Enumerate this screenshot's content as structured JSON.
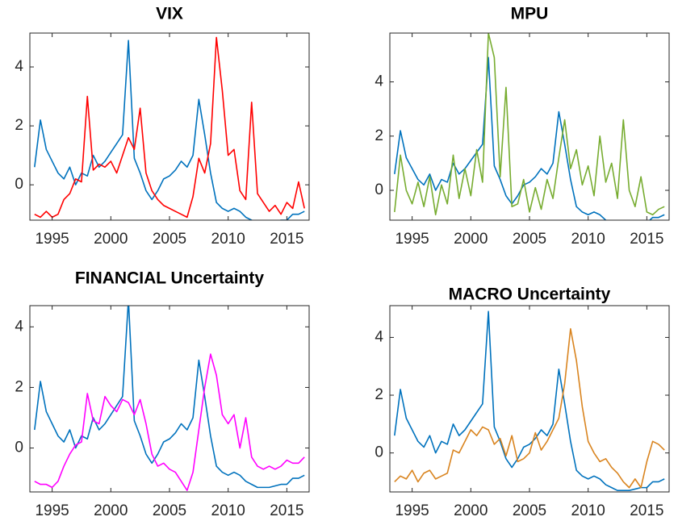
{
  "chart_data": [
    {
      "type": "line",
      "title": "VIX",
      "x": [
        1993.5,
        1994,
        1994.5,
        1995,
        1995.5,
        1996,
        1996.5,
        1997,
        1997.5,
        1998,
        1998.5,
        1999,
        1999.5,
        2000,
        2000.5,
        2001,
        2001.5,
        2002,
        2002.5,
        2003,
        2003.5,
        2004,
        2004.5,
        2005,
        2005.5,
        2006,
        2006.5,
        2007,
        2007.5,
        2008,
        2008.5,
        2009,
        2009.5,
        2010,
        2010.5,
        2011,
        2011.5,
        2012,
        2012.5,
        2013,
        2013.5,
        2014,
        2014.5,
        2015,
        2015.5,
        2016,
        2016.5
      ],
      "series": [
        {
          "color": "#0072bd",
          "values": [
            0.6,
            2.2,
            1.2,
            0.8,
            0.4,
            0.2,
            0.6,
            0.0,
            0.4,
            0.3,
            1.0,
            0.6,
            0.8,
            1.1,
            1.4,
            1.7,
            4.9,
            0.9,
            0.4,
            -0.2,
            -0.5,
            -0.2,
            0.2,
            0.3,
            0.5,
            0.8,
            0.6,
            1.0,
            2.9,
            1.7,
            0.4,
            -0.6,
            -0.8,
            -0.9,
            -0.8,
            -0.9,
            -1.1,
            -1.2,
            -1.3,
            -1.3,
            -1.3,
            -1.25,
            -1.2,
            -1.2,
            -1.0,
            -1.0,
            -0.9
          ]
        },
        {
          "color": "#ff0000",
          "values": [
            -1.0,
            -1.1,
            -0.9,
            -1.1,
            -1.0,
            -0.5,
            -0.3,
            0.2,
            0.1,
            3.0,
            0.5,
            0.7,
            0.6,
            0.8,
            0.4,
            1.0,
            1.6,
            1.2,
            2.6,
            0.4,
            -0.2,
            -0.5,
            -0.7,
            -0.8,
            -0.9,
            -1.0,
            -1.1,
            -0.4,
            0.9,
            0.4,
            1.4,
            5.0,
            3.2,
            1.0,
            1.2,
            -0.2,
            -0.5,
            2.8,
            -0.3,
            -0.6,
            -0.9,
            -0.7,
            -1.0,
            -0.6,
            -0.8,
            0.1,
            -0.8
          ]
        }
      ],
      "xlim": [
        1993.1,
        2016.9
      ],
      "xticks": [
        1995,
        2000,
        2005,
        2010,
        2015
      ],
      "ylim": [
        -1.2,
        5.15
      ],
      "yticks": [
        0,
        2,
        4
      ]
    },
    {
      "type": "line",
      "title": "MPU",
      "x": [
        1993.5,
        1994,
        1994.5,
        1995,
        1995.5,
        1996,
        1996.5,
        1997,
        1997.5,
        1998,
        1998.5,
        1999,
        1999.5,
        2000,
        2000.5,
        2001,
        2001.5,
        2002,
        2002.5,
        2003,
        2003.5,
        2004,
        2004.5,
        2005,
        2005.5,
        2006,
        2006.5,
        2007,
        2007.5,
        2008,
        2008.5,
        2009,
        2009.5,
        2010,
        2010.5,
        2011,
        2011.5,
        2012,
        2012.5,
        2013,
        2013.5,
        2014,
        2014.5,
        2015,
        2015.5,
        2016,
        2016.5
      ],
      "series": [
        {
          "color": "#0072bd",
          "values": [
            0.6,
            2.2,
            1.2,
            0.8,
            0.4,
            0.2,
            0.6,
            0.0,
            0.4,
            0.3,
            1.0,
            0.6,
            0.8,
            1.1,
            1.4,
            1.7,
            4.9,
            0.9,
            0.4,
            -0.2,
            -0.5,
            -0.2,
            0.2,
            0.3,
            0.5,
            0.8,
            0.6,
            1.0,
            2.9,
            1.7,
            0.4,
            -0.6,
            -0.8,
            -0.9,
            -0.8,
            -0.9,
            -1.1,
            -1.2,
            -1.3,
            -1.3,
            -1.3,
            -1.25,
            -1.2,
            -1.2,
            -1.0,
            -1.0,
            -0.9
          ]
        },
        {
          "color": "#77ac30",
          "values": [
            -0.8,
            1.3,
            0.0,
            -0.5,
            0.3,
            -0.6,
            0.5,
            -0.9,
            0.2,
            -0.5,
            1.3,
            -0.3,
            0.8,
            -0.2,
            1.5,
            0.3,
            5.8,
            4.9,
            0.5,
            3.8,
            -0.6,
            -0.5,
            0.4,
            -0.8,
            0.1,
            -0.7,
            0.4,
            -0.3,
            1.2,
            2.6,
            0.8,
            1.5,
            0.2,
            0.9,
            -0.2,
            2.0,
            0.3,
            1.0,
            -0.3,
            2.6,
            0.0,
            -0.6,
            0.5,
            -0.8,
            -0.9,
            -0.7,
            -0.6
          ]
        }
      ],
      "xlim": [
        1993.1,
        2016.9
      ],
      "xticks": [
        1995,
        2000,
        2005,
        2010,
        2015
      ],
      "ylim": [
        -1.1,
        5.8
      ],
      "yticks": [
        0,
        2,
        4
      ]
    },
    {
      "type": "line",
      "title": "FINANCIAL Uncertainty",
      "x": [
        1993.5,
        1994,
        1994.5,
        1995,
        1995.5,
        1996,
        1996.5,
        1997,
        1997.5,
        1998,
        1998.5,
        1999,
        1999.5,
        2000,
        2000.5,
        2001,
        2001.5,
        2002,
        2002.5,
        2003,
        2003.5,
        2004,
        2004.5,
        2005,
        2005.5,
        2006,
        2006.5,
        2007,
        2007.5,
        2008,
        2008.5,
        2009,
        2009.5,
        2010,
        2010.5,
        2011,
        2011.5,
        2012,
        2012.5,
        2013,
        2013.5,
        2014,
        2014.5,
        2015,
        2015.5,
        2016,
        2016.5
      ],
      "series": [
        {
          "color": "#0072bd",
          "values": [
            0.6,
            2.2,
            1.2,
            0.8,
            0.4,
            0.2,
            0.6,
            0.0,
            0.4,
            0.3,
            1.0,
            0.6,
            0.8,
            1.1,
            1.4,
            1.7,
            4.9,
            0.9,
            0.4,
            -0.2,
            -0.5,
            -0.2,
            0.2,
            0.3,
            0.5,
            0.8,
            0.6,
            1.0,
            2.9,
            1.7,
            0.4,
            -0.6,
            -0.8,
            -0.9,
            -0.8,
            -0.9,
            -1.1,
            -1.2,
            -1.3,
            -1.3,
            -1.3,
            -1.25,
            -1.2,
            -1.2,
            -1.0,
            -1.0,
            -0.9
          ]
        },
        {
          "color": "#ff00ff",
          "values": [
            -1.1,
            -1.2,
            -1.2,
            -1.3,
            -1.1,
            -0.6,
            -0.2,
            0.1,
            0.2,
            1.8,
            0.9,
            0.8,
            1.7,
            1.4,
            1.2,
            1.6,
            1.5,
            1.1,
            1.6,
            0.8,
            -0.2,
            -0.6,
            -0.5,
            -0.7,
            -0.8,
            -1.1,
            -1.4,
            -0.8,
            0.6,
            2.0,
            3.1,
            2.4,
            1.1,
            0.8,
            1.1,
            0.0,
            1.0,
            -0.3,
            -0.6,
            -0.7,
            -0.6,
            -0.7,
            -0.6,
            -0.4,
            -0.5,
            -0.5,
            -0.3
          ]
        }
      ],
      "xlim": [
        1993.1,
        2016.9
      ],
      "xticks": [
        1995,
        2000,
        2005,
        2010,
        2015
      ],
      "ylim": [
        -1.45,
        4.7
      ],
      "yticks": [
        0,
        2,
        4
      ]
    },
    {
      "type": "line",
      "title": "MACRO Uncertainty",
      "x": [
        1993.5,
        1994,
        1994.5,
        1995,
        1995.5,
        1996,
        1996.5,
        1997,
        1997.5,
        1998,
        1998.5,
        1999,
        1999.5,
        2000,
        2000.5,
        2001,
        2001.5,
        2002,
        2002.5,
        2003,
        2003.5,
        2004,
        2004.5,
        2005,
        2005.5,
        2006,
        2006.5,
        2007,
        2007.5,
        2008,
        2008.5,
        2009,
        2009.5,
        2010,
        2010.5,
        2011,
        2011.5,
        2012,
        2012.5,
        2013,
        2013.5,
        2014,
        2014.5,
        2015,
        2015.5,
        2016,
        2016.5
      ],
      "series": [
        {
          "color": "#0072bd",
          "values": [
            0.6,
            2.2,
            1.2,
            0.8,
            0.4,
            0.2,
            0.6,
            0.0,
            0.4,
            0.3,
            1.0,
            0.6,
            0.8,
            1.1,
            1.4,
            1.7,
            4.9,
            0.9,
            0.4,
            -0.2,
            -0.5,
            -0.2,
            0.2,
            0.3,
            0.5,
            0.8,
            0.6,
            1.0,
            2.9,
            1.7,
            0.4,
            -0.6,
            -0.8,
            -0.9,
            -0.8,
            -0.9,
            -1.1,
            -1.2,
            -1.3,
            -1.3,
            -1.3,
            -1.25,
            -1.2,
            -1.2,
            -1.0,
            -1.0,
            -0.9
          ]
        },
        {
          "color": "#d9841f",
          "values": [
            -1.0,
            -0.8,
            -0.9,
            -0.6,
            -1.0,
            -0.7,
            -0.6,
            -0.9,
            -0.8,
            -0.7,
            0.1,
            0.0,
            0.4,
            0.8,
            0.6,
            0.9,
            0.8,
            0.3,
            0.5,
            -0.1,
            0.6,
            -0.3,
            -0.2,
            0.0,
            0.7,
            0.1,
            0.4,
            0.8,
            1.2,
            2.4,
            4.3,
            3.2,
            1.6,
            0.4,
            0.0,
            -0.3,
            -0.2,
            -0.5,
            -0.7,
            -1.0,
            -1.2,
            -0.9,
            -1.2,
            -0.3,
            0.4,
            0.3,
            0.1
          ]
        }
      ],
      "xlim": [
        1993.1,
        2016.9
      ],
      "xticks": [
        1995,
        2000,
        2005,
        2010,
        2015
      ],
      "ylim": [
        -1.35,
        5.1
      ],
      "yticks": [
        0,
        2,
        4
      ]
    }
  ]
}
